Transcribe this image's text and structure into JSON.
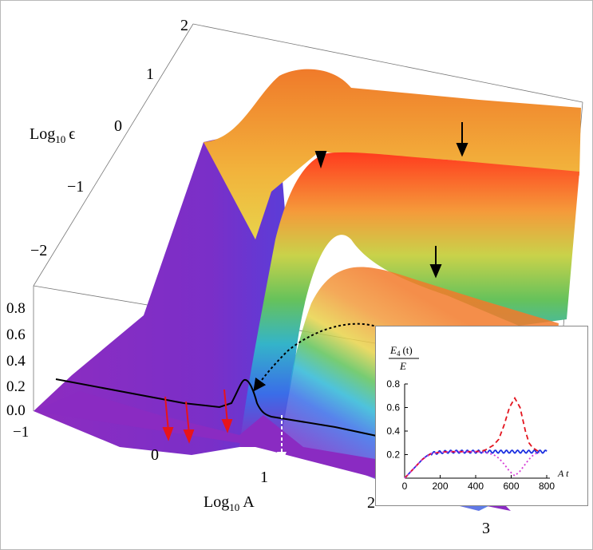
{
  "main_plot": {
    "type": "surface3d",
    "x_axis": {
      "label": "Log",
      "label_sub": "10",
      "label_var": "A",
      "ticks": [
        "0",
        "1",
        "2",
        "3"
      ]
    },
    "y_axis": {
      "label": "Log",
      "label_sub": "10",
      "label_var": "ϵ",
      "ticks": [
        "2",
        "1",
        "0",
        "−1",
        "−2"
      ]
    },
    "z_axis": {
      "ticks": [
        "0.8",
        "0.6",
        "0.4",
        "0.2",
        "0.0",
        "−1"
      ]
    },
    "colors": {
      "surface_low": "#8a2bc2",
      "surface_blue": "#3a6de8",
      "surface_green": "#5fc35a",
      "surface_yellow": "#e8d34a",
      "surface_orange": "#f29a3c",
      "surface_red": "#ff3b1e",
      "arrow_red": "#e8141a",
      "arrow_black": "#000000",
      "arrow_white": "#ffffff"
    }
  },
  "chart_data": {
    "type": "line",
    "title": "",
    "ylabel_num": "E",
    "ylabel_num_sub": "4",
    "ylabel_num_arg": "(t)",
    "ylabel_den": "E",
    "xlabel": "A t",
    "xlim": [
      0,
      800
    ],
    "ylim": [
      0,
      0.8
    ],
    "xticks": [
      "0",
      "200",
      "400",
      "600",
      "800"
    ],
    "yticks": [
      "0.2",
      "0.4",
      "0.6",
      "0.8"
    ],
    "series": [
      {
        "style": "solid-oscillating",
        "color": "#1a2fe0",
        "x": [
          0,
          25,
          50,
          75,
          100,
          125,
          150,
          175,
          200,
          250,
          300,
          350,
          400,
          450,
          500,
          550,
          600,
          650,
          700,
          750,
          800
        ],
        "y": [
          0.0,
          0.04,
          0.08,
          0.12,
          0.16,
          0.19,
          0.21,
          0.215,
          0.22,
          0.225,
          0.225,
          0.225,
          0.225,
          0.225,
          0.225,
          0.225,
          0.225,
          0.225,
          0.225,
          0.225,
          0.225
        ]
      },
      {
        "style": "dashed",
        "color": "#e3141e",
        "x": [
          0,
          50,
          100,
          150,
          200,
          250,
          300,
          350,
          400,
          450,
          500,
          530,
          560,
          590,
          620,
          650,
          680,
          700,
          720,
          740,
          760
        ],
        "y": [
          0.0,
          0.08,
          0.16,
          0.21,
          0.22,
          0.225,
          0.225,
          0.225,
          0.225,
          0.235,
          0.28,
          0.33,
          0.45,
          0.6,
          0.68,
          0.6,
          0.4,
          0.3,
          0.26,
          0.24,
          0.22
        ]
      },
      {
        "style": "dotted",
        "color": "#d63bd6",
        "x": [
          0,
          50,
          100,
          150,
          200,
          250,
          300,
          350,
          400,
          450,
          500,
          530,
          560,
          590,
          620,
          650,
          680,
          700,
          720,
          740,
          760
        ],
        "y": [
          0.0,
          0.08,
          0.16,
          0.21,
          0.22,
          0.225,
          0.225,
          0.225,
          0.225,
          0.22,
          0.2,
          0.17,
          0.12,
          0.06,
          0.02,
          0.06,
          0.12,
          0.16,
          0.19,
          0.21,
          0.22
        ]
      }
    ]
  }
}
